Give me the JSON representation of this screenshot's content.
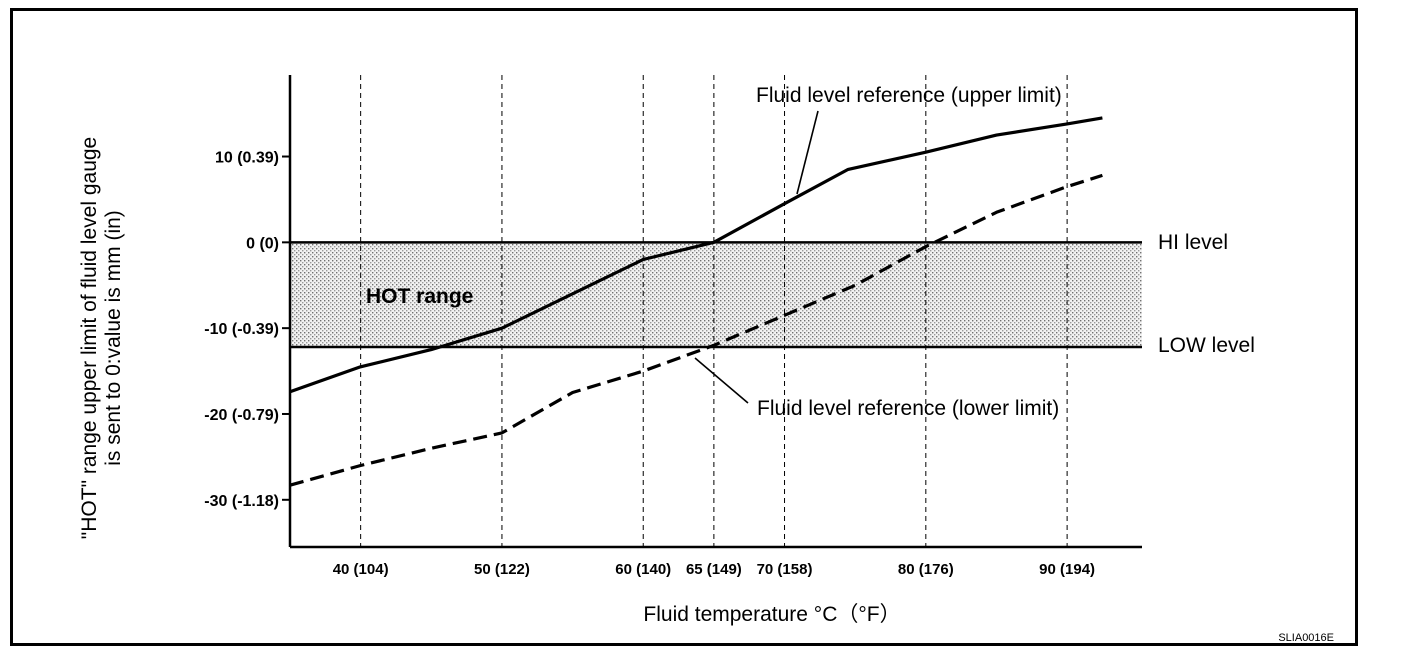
{
  "chart_data": {
    "type": "line",
    "xlabel": "Fluid temperature °C（°F）",
    "ylabel_line1": "\"HOT\" range upper limit of fluid level gauge",
    "ylabel_line2": "is sent to 0:value is mm (in)",
    "x_ticks": [
      {
        "value": 40,
        "label": "40 (104)"
      },
      {
        "value": 50,
        "label": "50 (122)"
      },
      {
        "value": 60,
        "label": "60 (140)"
      },
      {
        "value": 65,
        "label": "65 (149)"
      },
      {
        "value": 70,
        "label": "70 (158)"
      },
      {
        "value": 80,
        "label": "80 (176)"
      },
      {
        "value": 90,
        "label": "90 (194)"
      }
    ],
    "y_ticks": [
      {
        "value": 10,
        "label": "10 (0.39)"
      },
      {
        "value": 0,
        "label": "0 (0)"
      },
      {
        "value": -10,
        "label": "-10 (-0.39)"
      },
      {
        "value": -20,
        "label": "-20 (-0.79)"
      },
      {
        "value": -30,
        "label": "-30 (-1.18)"
      }
    ],
    "xlim": [
      35,
      95.3
    ],
    "ylim": [
      -35.5,
      19.5
    ],
    "grid": "vertical dashed lines at x ticks",
    "hot_range": {
      "from": -12.2,
      "to": 0,
      "label": "HOT range"
    },
    "reference_levels": [
      {
        "name": "HI level",
        "value": 0
      },
      {
        "name": "LOW level",
        "value": -12.2
      }
    ],
    "series": [
      {
        "name": "Fluid level reference (upper limit)",
        "style": "solid",
        "x": [
          35,
          40,
          45,
          50,
          55,
          60,
          65,
          70,
          74.5,
          80,
          85,
          90,
          92.5
        ],
        "y": [
          -17.4,
          -14.5,
          -12.5,
          -10,
          -6,
          -2,
          0,
          4.5,
          8.5,
          10.5,
          12.5,
          13.8,
          14.5
        ]
      },
      {
        "name": "Fluid level reference (lower limit)",
        "style": "dashed",
        "x": [
          35,
          40,
          45,
          50,
          55,
          60,
          65,
          70,
          75,
          80,
          85,
          90,
          92.5
        ],
        "y": [
          -28.3,
          -26,
          -24,
          -22.2,
          -17.5,
          -15,
          -12,
          -8.5,
          -5,
          -0.5,
          3.5,
          6.5,
          7.8
        ]
      }
    ]
  },
  "labels": {
    "hi_level": "HI level",
    "low_level": "LOW level",
    "hot_range": "HOT range",
    "upper_ref": "Fluid level reference (upper limit)",
    "lower_ref": "Fluid level reference (lower limit)",
    "figure_code": "SLIA0016E"
  }
}
